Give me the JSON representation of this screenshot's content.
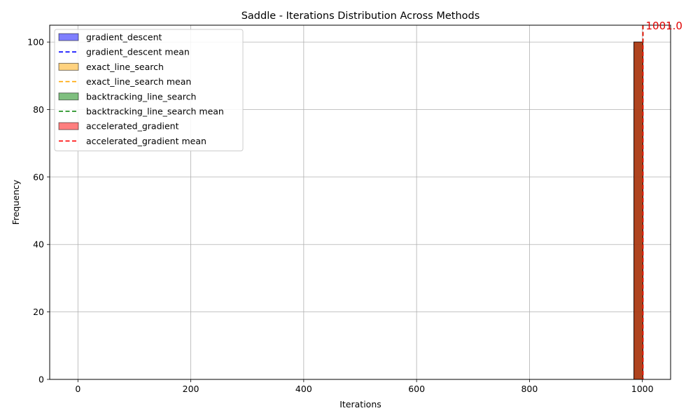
{
  "chart_data": {
    "type": "bar",
    "title": "Saddle - Iterations Distribution Across Methods",
    "xlabel": "Iterations",
    "ylabel": "Frequency",
    "xlim": [
      -50,
      1050
    ],
    "ylim": [
      0,
      105
    ],
    "xticks": [
      0,
      200,
      400,
      600,
      800,
      1000
    ],
    "yticks": [
      0,
      20,
      40,
      60,
      80,
      100
    ],
    "grid": true,
    "legend_position": "top-left",
    "histogram_range": [
      0,
      1001
    ],
    "bin_width": 16,
    "series": [
      {
        "name": "gradient_descent",
        "color": "#0000ff",
        "bins": [
          {
            "x0": 985,
            "x1": 1001,
            "count": 100
          }
        ],
        "mean": 1001.0,
        "mean_label": "gradient_descent mean"
      },
      {
        "name": "exact_line_search",
        "color": "#ffa500",
        "bins": [
          {
            "x0": 985,
            "x1": 1001,
            "count": 100
          }
        ],
        "mean": 1001.0,
        "mean_label": "exact_line_search mean"
      },
      {
        "name": "backtracking_line_search",
        "color": "#008000",
        "bins": [
          {
            "x0": 985,
            "x1": 1001,
            "count": 100
          }
        ],
        "mean": 1001.0,
        "mean_label": "backtracking_line_search mean"
      },
      {
        "name": "accelerated_gradient",
        "color": "#ff0000",
        "bins": [
          {
            "x0": 985,
            "x1": 1001,
            "count": 100
          }
        ],
        "mean": 1001.0,
        "mean_label": "accelerated_gradient mean"
      }
    ],
    "annotations": [
      {
        "text": "1001.0",
        "x": 1001.0,
        "y": 105,
        "color": "#e00000"
      }
    ]
  }
}
